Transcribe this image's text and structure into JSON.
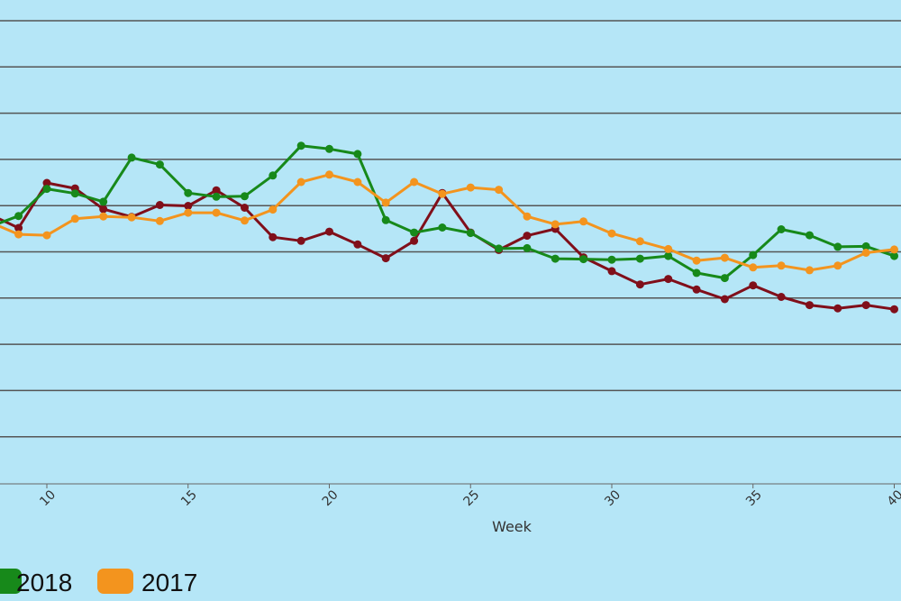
{
  "chart_data": {
    "type": "line",
    "title": "",
    "xlabel": "Week",
    "ylabel": "",
    "xlim": [
      8,
      40
    ],
    "x_ticks": [
      10,
      15,
      20,
      25,
      30,
      35,
      40
    ],
    "grid": "horizontal",
    "legend_position": "bottom-left",
    "series": [
      {
        "name": "",
        "color": "#800f1a",
        "x": [
          8,
          9,
          10,
          11,
          12,
          13,
          14,
          15,
          16,
          17,
          18,
          19,
          20,
          21,
          22,
          23,
          24,
          25,
          26,
          27,
          28,
          29,
          30,
          31,
          32,
          33,
          34,
          35,
          36,
          37,
          38,
          39,
          40
        ],
        "y": [
          8.2,
          5.3,
          15.1,
          13.9,
          9.4,
          7.7,
          10.3,
          10.1,
          13.5,
          9.7,
          3.3,
          2.5,
          4.5,
          1.7,
          -1.3,
          2.5,
          12.9,
          4.3,
          0.5,
          3.6,
          5.1,
          -1.1,
          -4.1,
          -7.0,
          -5.8,
          -8.1,
          -10.2,
          -7.2,
          -9.7,
          -11.5,
          -12.2,
          -11.5,
          -12.4
        ]
      },
      {
        "name": "2018",
        "color": "#17891a",
        "x": [
          8,
          9,
          10,
          11,
          12,
          13,
          14,
          15,
          16,
          17,
          18,
          19,
          20,
          21,
          22,
          23,
          24,
          25,
          26,
          27,
          28,
          29,
          30,
          31,
          32,
          33,
          34,
          35,
          36,
          37,
          38,
          39,
          40
        ],
        "y": [
          5.6,
          7.9,
          13.8,
          12.8,
          11.0,
          20.6,
          19.1,
          12.9,
          12.1,
          12.2,
          16.7,
          23.2,
          22.5,
          21.4,
          7.0,
          4.3,
          5.4,
          4.2,
          0.8,
          0.9,
          -1.4,
          -1.5,
          -1.6,
          -1.4,
          -0.8,
          -4.5,
          -5.6,
          -0.6,
          5.0,
          3.7,
          1.2,
          1.3,
          -0.8
        ]
      },
      {
        "name": "2017",
        "color": "#f3941e",
        "x": [
          8,
          9,
          10,
          11,
          12,
          13,
          14,
          15,
          16,
          17,
          18,
          19,
          20,
          21,
          22,
          23,
          24,
          25,
          26,
          27,
          28,
          29,
          30,
          31,
          32,
          33,
          34,
          35,
          36,
          37,
          38,
          39,
          40
        ],
        "y": [
          6.5,
          3.9,
          3.7,
          7.3,
          7.8,
          7.6,
          6.8,
          8.6,
          8.6,
          6.9,
          9.3,
          15.3,
          16.9,
          15.3,
          10.8,
          15.3,
          12.7,
          14.1,
          13.6,
          7.8,
          6.1,
          6.7,
          4.1,
          2.4,
          0.7,
          -1.8,
          -1.2,
          -3.3,
          -2.9,
          -3.9,
          -2.9,
          -0.1,
          0.6
        ]
      }
    ]
  }
}
